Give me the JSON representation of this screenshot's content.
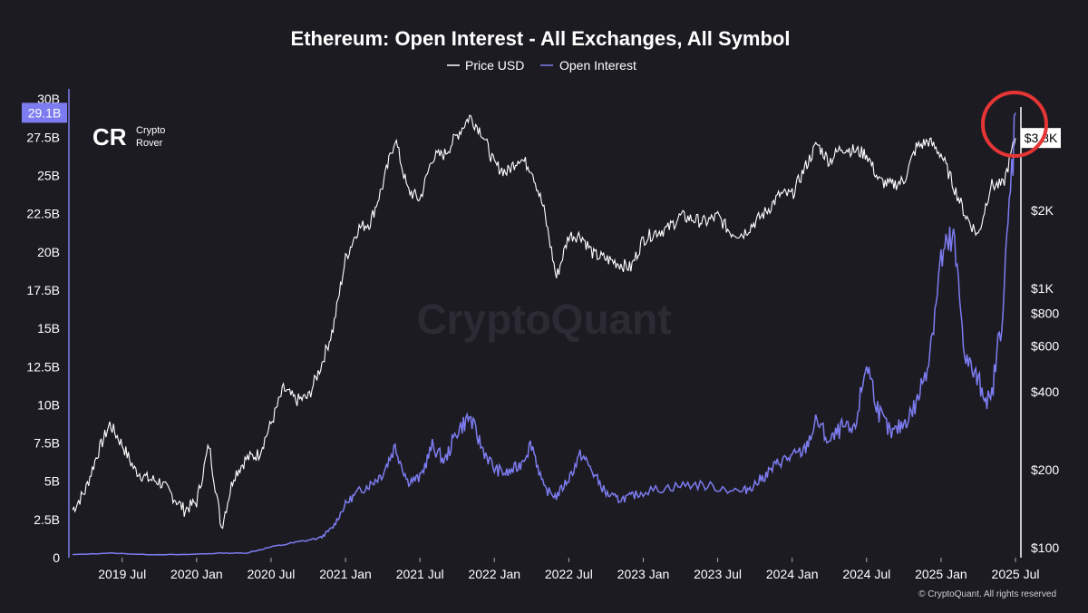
{
  "chart_data": {
    "type": "line",
    "title": "Ethereum: Open Interest - All Exchanges, All Symbol",
    "legend_position": "top-center",
    "grid": false,
    "x_tick_labels": [
      "2019 Jul",
      "2020 Jan",
      "2020 Jul",
      "2021 Jan",
      "2021 Jul",
      "2022 Jan",
      "2022 Jul",
      "2023 Jan",
      "2023 Jul",
      "2024 Jan",
      "2024 Jul",
      "2025 Jan",
      "2025 Jul"
    ],
    "x_range": [
      "2019-03",
      "2025-07"
    ],
    "left_axis": {
      "series": "Open Interest",
      "ylim": [
        0,
        30
      ],
      "unit": "B",
      "tick_labels": [
        "0",
        "2.5B",
        "5B",
        "7.5B",
        "10B",
        "12.5B",
        "15B",
        "17.5B",
        "20B",
        "22.5B",
        "25B",
        "27.5B",
        "30B"
      ],
      "last_value_label": "29.1B"
    },
    "right_axis": {
      "series": "Price USD",
      "scale": "log",
      "ylim": [
        100,
        5000
      ],
      "tick_values": [
        100,
        200,
        400,
        600,
        800,
        1000,
        2000
      ],
      "tick_labels": [
        "$100",
        "$200",
        "$400",
        "$600",
        "$800",
        "$1K",
        "$2K"
      ],
      "last_value_label": "$3.8K"
    },
    "series": [
      {
        "name": "Price USD",
        "axis": "right",
        "color": "#ffffff",
        "x": [
          "2019-03",
          "2019-04",
          "2019-05",
          "2019-06",
          "2019-07",
          "2019-08",
          "2019-09",
          "2019-10",
          "2019-11",
          "2019-12",
          "2020-01",
          "2020-02",
          "2020-03",
          "2020-04",
          "2020-05",
          "2020-06",
          "2020-07",
          "2020-08",
          "2020-09",
          "2020-10",
          "2020-11",
          "2020-12",
          "2021-01",
          "2021-02",
          "2021-03",
          "2021-04",
          "2021-05",
          "2021-06",
          "2021-07",
          "2021-08",
          "2021-09",
          "2021-10",
          "2021-11",
          "2021-12",
          "2022-01",
          "2022-02",
          "2022-03",
          "2022-04",
          "2022-05",
          "2022-06",
          "2022-07",
          "2022-08",
          "2022-09",
          "2022-10",
          "2022-11",
          "2022-12",
          "2023-01",
          "2023-02",
          "2023-03",
          "2023-04",
          "2023-05",
          "2023-06",
          "2023-07",
          "2023-08",
          "2023-09",
          "2023-10",
          "2023-11",
          "2023-12",
          "2024-01",
          "2024-02",
          "2024-03",
          "2024-04",
          "2024-05",
          "2024-06",
          "2024-07",
          "2024-08",
          "2024-09",
          "2024-10",
          "2024-11",
          "2024-12",
          "2025-01",
          "2025-02",
          "2025-03",
          "2025-04",
          "2025-05",
          "2025-06",
          "2025-07"
        ],
        "values": [
          140,
          165,
          230,
          300,
          250,
          200,
          185,
          180,
          160,
          140,
          150,
          250,
          120,
          190,
          220,
          230,
          300,
          410,
          370,
          380,
          500,
          700,
          1300,
          1700,
          1800,
          2500,
          3800,
          2400,
          2200,
          3200,
          3300,
          3900,
          4600,
          4000,
          3000,
          2800,
          3200,
          2900,
          2000,
          1100,
          1600,
          1600,
          1350,
          1300,
          1250,
          1200,
          1550,
          1650,
          1700,
          1900,
          1850,
          1800,
          1900,
          1650,
          1620,
          1800,
          2000,
          2300,
          2300,
          2900,
          3600,
          3100,
          3500,
          3400,
          3300,
          2600,
          2500,
          2600,
          3500,
          3700,
          3300,
          2500,
          1900,
          1600,
          2500,
          2500,
          3800
        ]
      },
      {
        "name": "Open Interest",
        "axis": "left",
        "color": "#7c7cf0",
        "x": [
          "2019-03",
          "2019-06",
          "2019-09",
          "2019-12",
          "2020-03",
          "2020-05",
          "2020-07",
          "2020-09",
          "2020-11",
          "2020-12",
          "2021-01",
          "2021-02",
          "2021-03",
          "2021-04",
          "2021-05",
          "2021-06",
          "2021-07",
          "2021-08",
          "2021-09",
          "2021-10",
          "2021-11",
          "2021-12",
          "2022-01",
          "2022-02",
          "2022-03",
          "2022-04",
          "2022-05",
          "2022-06",
          "2022-07",
          "2022-08",
          "2022-09",
          "2022-10",
          "2022-11",
          "2022-12",
          "2023-01",
          "2023-03",
          "2023-05",
          "2023-07",
          "2023-09",
          "2023-10",
          "2023-11",
          "2023-12",
          "2024-01",
          "2024-02",
          "2024-03",
          "2024-04",
          "2024-05",
          "2024-06",
          "2024-07",
          "2024-08",
          "2024-09",
          "2024-10",
          "2024-11",
          "2024-12",
          "2025-01",
          "2025-02",
          "2025-03",
          "2025-04",
          "2025-05",
          "2025-06",
          "2025-07"
        ],
        "values": [
          0.2,
          0.3,
          0.2,
          0.2,
          0.3,
          0.3,
          0.7,
          1.0,
          1.3,
          2.0,
          3.5,
          4.3,
          4.8,
          5.5,
          7.3,
          5.0,
          5.2,
          7.3,
          6.3,
          8.3,
          9.2,
          7.2,
          5.8,
          5.5,
          6.0,
          7.5,
          4.5,
          4.0,
          5.2,
          6.8,
          5.5,
          4.2,
          3.8,
          4.0,
          4.3,
          4.6,
          4.8,
          4.6,
          4.3,
          4.8,
          5.5,
          6.3,
          6.6,
          7.0,
          9.0,
          7.5,
          8.5,
          8.2,
          12.8,
          9.5,
          8.0,
          8.8,
          10.0,
          13.0,
          19.5,
          20.8,
          13.0,
          11.5,
          10.0,
          16.5,
          29.1
        ]
      }
    ]
  },
  "branding": {
    "logo_mark": "CR",
    "logo_line1": "Crypto",
    "logo_line2": "Rover",
    "watermark": "CryptoQuant",
    "copyright": "© CryptoQuant. All rights reserved"
  },
  "colors": {
    "background": "#1d1b22",
    "open_interest": "#7c7cf0",
    "price": "#ffffff",
    "highlight_circle": "#e53535"
  }
}
